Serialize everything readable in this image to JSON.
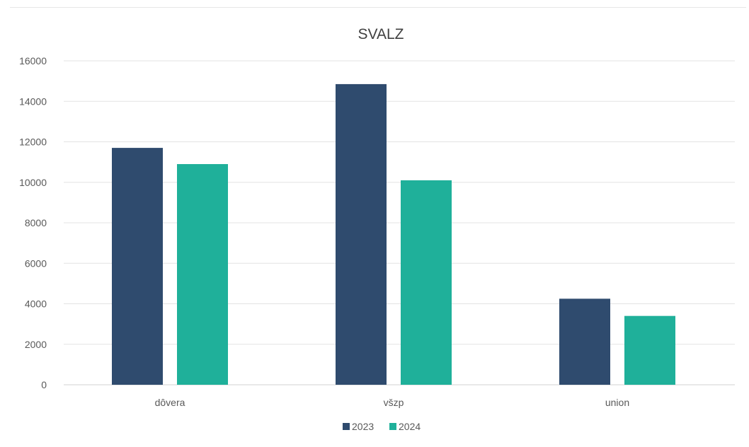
{
  "chart_data": {
    "type": "bar",
    "title": "SVALZ",
    "xlabel": "",
    "ylabel": "",
    "categories": [
      "dôvera",
      "všzp",
      "union"
    ],
    "series": [
      {
        "name": "2023",
        "color": "#2f4b6e",
        "values": [
          11700,
          14850,
          4250
        ]
      },
      {
        "name": "2024",
        "color": "#1fb09a",
        "values": [
          10900,
          10100,
          3400
        ]
      }
    ],
    "ylim": [
      0,
      16000
    ],
    "yticks": [
      "0",
      "2000",
      "4000",
      "6000",
      "8000",
      "10000",
      "12000",
      "14000",
      "16000"
    ],
    "grid": true,
    "legend_position": "bottom",
    "colors": {
      "gridline": "#e3e3e3",
      "axis_text": "#595959",
      "title_text": "#404040"
    }
  }
}
